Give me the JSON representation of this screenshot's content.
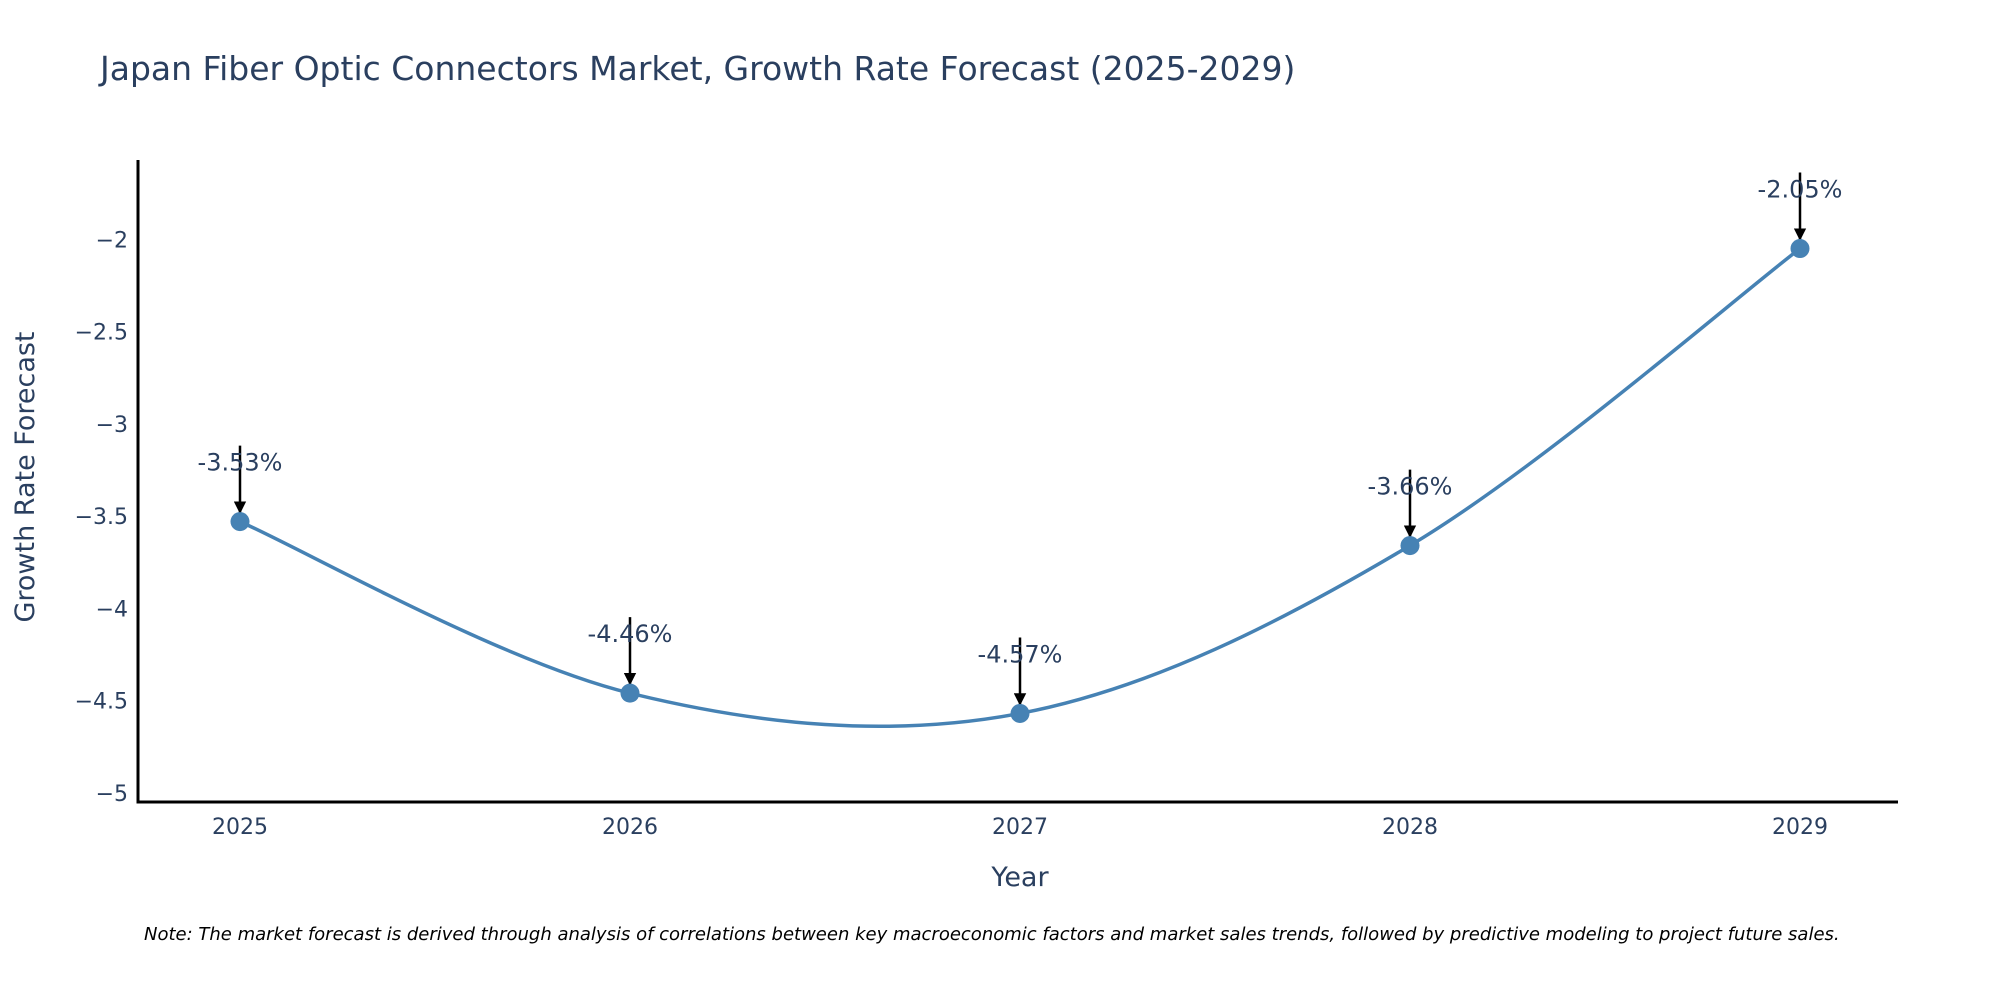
{
  "chart_data": {
    "type": "line",
    "title": "Japan Fiber Optic Connectors Market, Growth Rate Forecast (2025-2029)",
    "xlabel": "Year",
    "ylabel": "Growth Rate Forecast",
    "x": [
      "2025",
      "2026",
      "2027",
      "2028",
      "2029"
    ],
    "values": [
      -3.53,
      -4.46,
      -4.57,
      -3.66,
      -2.05
    ],
    "data_labels": [
      "-3.53%",
      "-4.46%",
      "-4.57%",
      "-3.66%",
      "-2.05%"
    ],
    "ylim": [
      -5.05,
      -1.57
    ],
    "yticks": [
      -2,
      -2.5,
      -3,
      -3.5,
      -4,
      -4.5,
      -5
    ],
    "ytick_labels": [
      "−2",
      "−2.5",
      "−3",
      "−3.5",
      "−4",
      "−4.5",
      "−5"
    ],
    "grid": false,
    "legend": "none",
    "line_color": "#4682b4",
    "marker_color": "#4682b4",
    "annotation_arrow_color": "#000000"
  },
  "note": "Note: The market forecast is derived through analysis of correlations between key macroeconomic factors and market sales trends, followed by predictive modeling to project future sales."
}
